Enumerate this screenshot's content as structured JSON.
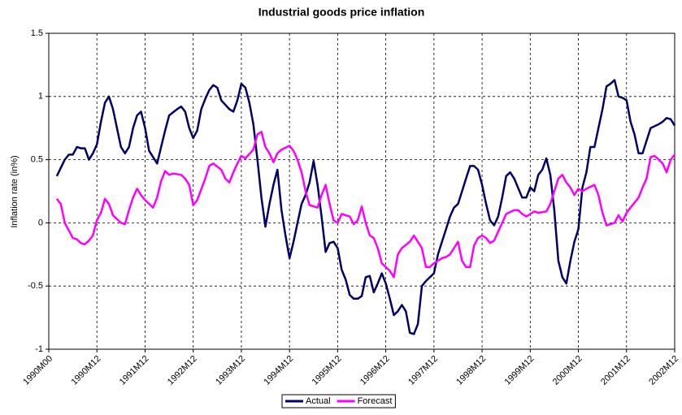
{
  "chart_data": {
    "type": "line",
    "title": "Industrial goods price inflation",
    "y_label": "Inflation rate (in%)",
    "xlim": [
      0,
      156
    ],
    "xticks": [
      {
        "value": 0,
        "label": "1990M00"
      },
      {
        "value": 12,
        "label": "1990M12"
      },
      {
        "value": 24,
        "label": "1991M12"
      },
      {
        "value": 36,
        "label": "1992M12"
      },
      {
        "value": 48,
        "label": "1993M12"
      },
      {
        "value": 60,
        "label": "1994M12"
      },
      {
        "value": 72,
        "label": "1995M12"
      },
      {
        "value": 84,
        "label": "1996M12"
      },
      {
        "value": 96,
        "label": "1997M12"
      },
      {
        "value": 108,
        "label": "1998M12"
      },
      {
        "value": 120,
        "label": "1999M12"
      },
      {
        "value": 132,
        "label": "2000M12"
      },
      {
        "value": 144,
        "label": "2001M12"
      },
      {
        "value": 156,
        "label": "2002M12"
      }
    ],
    "ylim": [
      -1,
      1.5
    ],
    "yticks": [
      -1,
      -0.5,
      0,
      0.5,
      1,
      1.5
    ],
    "grid": true,
    "legend": "bottom",
    "series": [
      {
        "name": "Actual",
        "color": "#000066",
        "x": [
          2,
          4,
          5,
          6,
          7,
          8,
          9,
          10,
          11,
          12,
          13,
          14,
          15,
          16,
          17,
          18,
          19,
          20,
          21,
          22,
          23,
          24,
          25,
          27,
          28,
          29,
          30,
          32,
          33,
          34,
          35,
          36,
          37,
          38,
          39,
          40,
          41,
          42,
          43,
          45,
          46,
          47,
          48,
          49,
          50,
          51,
          52,
          53,
          54,
          55,
          56,
          57,
          58,
          59,
          60,
          61,
          62,
          63,
          64,
          65,
          66,
          67,
          68,
          69,
          70,
          71,
          72,
          73,
          74,
          75,
          76,
          77,
          78,
          79,
          80,
          81,
          82,
          83,
          84,
          85,
          86,
          87,
          88,
          89,
          90,
          91,
          92,
          93,
          94,
          96,
          97,
          98,
          99,
          100,
          101,
          102,
          103,
          104,
          105,
          106,
          107,
          108,
          109,
          110,
          111,
          112,
          113,
          114,
          115,
          116,
          118,
          119,
          120,
          121,
          122,
          123,
          124,
          125,
          126,
          127,
          128,
          129,
          130,
          131,
          132,
          133,
          134,
          135,
          136,
          137,
          138,
          139,
          140,
          141,
          142,
          143,
          144,
          145,
          146,
          147,
          148,
          149,
          150,
          152,
          153,
          154,
          155,
          156
        ],
        "values": [
          0.37,
          0.5,
          0.54,
          0.54,
          0.6,
          0.59,
          0.59,
          0.5,
          0.55,
          0.62,
          0.8,
          0.95,
          1.0,
          0.9,
          0.75,
          0.6,
          0.55,
          0.6,
          0.75,
          0.85,
          0.88,
          0.75,
          0.57,
          0.47,
          0.6,
          0.73,
          0.85,
          0.9,
          0.92,
          0.88,
          0.75,
          0.67,
          0.73,
          0.9,
          0.98,
          1.05,
          1.09,
          1.07,
          0.97,
          0.9,
          0.88,
          0.97,
          1.1,
          1.07,
          0.95,
          0.78,
          0.5,
          0.2,
          -0.03,
          0.15,
          0.3,
          0.42,
          0.1,
          -0.1,
          -0.28,
          -0.15,
          0,
          0.15,
          0.22,
          0.32,
          0.49,
          0.3,
          0.05,
          -0.23,
          -0.16,
          -0.15,
          -0.2,
          -0.37,
          -0.45,
          -0.57,
          -0.6,
          -0.6,
          -0.58,
          -0.43,
          -0.42,
          -0.55,
          -0.48,
          -0.4,
          -0.48,
          -0.6,
          -0.73,
          -0.7,
          -0.65,
          -0.7,
          -0.87,
          -0.88,
          -0.8,
          -0.5,
          -0.46,
          -0.4,
          -0.25,
          -0.15,
          -0.05,
          0.05,
          0.12,
          0.15,
          0.25,
          0.35,
          0.45,
          0.45,
          0.42,
          0.3,
          0.15,
          0.02,
          -0.02,
          0.05,
          0.2,
          0.37,
          0.4,
          0.35,
          0.2,
          0.2,
          0.28,
          0.25,
          0.38,
          0.42,
          0.51,
          0.38,
          0.1,
          -0.3,
          -0.43,
          -0.48,
          -0.3,
          -0.15,
          -0.05,
          0.28,
          0.4,
          0.6,
          0.6,
          0.75,
          0.9,
          1.08,
          1.1,
          1.13,
          1.0,
          0.99,
          0.97,
          0.8,
          0.7,
          0.55,
          0.55,
          0.65,
          0.75,
          0.78,
          0.8,
          0.83,
          0.82,
          0.77
        ]
      },
      {
        "name": "Forecast",
        "color": "#ff00ff",
        "x": [
          2,
          3,
          4,
          6,
          7,
          8,
          9,
          10,
          11,
          12,
          13,
          14,
          15,
          16,
          18,
          19,
          20,
          21,
          22,
          23,
          24,
          26,
          27,
          28,
          29,
          30,
          31,
          33,
          34,
          35,
          36,
          37,
          39,
          40,
          41,
          43,
          44,
          45,
          46,
          47,
          48,
          49,
          51,
          52,
          53,
          54,
          55,
          56,
          57,
          58,
          60,
          61,
          62,
          63,
          64,
          65,
          67,
          68,
          69,
          70,
          71,
          72,
          73,
          75,
          76,
          77,
          78,
          79,
          80,
          81,
          82,
          83,
          85,
          86,
          87,
          88,
          90,
          91,
          92,
          93,
          94,
          95,
          96,
          97,
          98,
          99,
          100,
          101,
          102,
          103,
          104,
          105,
          106,
          107,
          108,
          109,
          110,
          111,
          112,
          113,
          114,
          116,
          117,
          118,
          119,
          120,
          121,
          122,
          124,
          125,
          126,
          127,
          128,
          129,
          130,
          131,
          132,
          133,
          134,
          136,
          137,
          138,
          139,
          140,
          141,
          142,
          143,
          144,
          145,
          147,
          148,
          149,
          150,
          151,
          152,
          153,
          154,
          155,
          156
        ],
        "values": [
          0.19,
          0.15,
          0,
          -0.12,
          -0.13,
          -0.16,
          -0.17,
          -0.14,
          -0.1,
          0.02,
          0.08,
          0.19,
          0.15,
          0.06,
          0,
          -0.01,
          0.1,
          0.2,
          0.27,
          0.22,
          0.18,
          0.12,
          0.2,
          0.33,
          0.41,
          0.38,
          0.39,
          0.38,
          0.35,
          0.3,
          0.14,
          0.18,
          0.35,
          0.45,
          0.47,
          0.42,
          0.35,
          0.32,
          0.4,
          0.47,
          0.53,
          0.51,
          0.58,
          0.7,
          0.72,
          0.6,
          0.55,
          0.48,
          0.55,
          0.58,
          0.61,
          0.57,
          0.5,
          0.4,
          0.25,
          0.14,
          0.12,
          0.22,
          0.3,
          0.15,
          0.02,
          0,
          0.07,
          0.05,
          -0.01,
          0.02,
          0.13,
          0,
          -0.1,
          -0.12,
          -0.2,
          -0.32,
          -0.38,
          -0.43,
          -0.25,
          -0.2,
          -0.15,
          -0.1,
          -0.15,
          -0.2,
          -0.35,
          -0.35,
          -0.32,
          -0.3,
          -0.28,
          -0.27,
          -0.25,
          -0.2,
          -0.15,
          -0.3,
          -0.35,
          -0.35,
          -0.18,
          -0.12,
          -0.1,
          -0.12,
          -0.16,
          -0.14,
          -0.07,
          0,
          0.07,
          0.1,
          0.1,
          0.07,
          0.05,
          0.07,
          0.09,
          0.08,
          0.09,
          0.15,
          0.25,
          0.35,
          0.38,
          0.32,
          0.28,
          0.22,
          0.27,
          0.25,
          0.27,
          0.3,
          0.22,
          0.08,
          -0.02,
          -0.01,
          0,
          0.06,
          0.01,
          0.08,
          0.12,
          0.2,
          0.28,
          0.35,
          0.52,
          0.53,
          0.5,
          0.47,
          0.4,
          0.5,
          0.54
        ]
      }
    ]
  }
}
